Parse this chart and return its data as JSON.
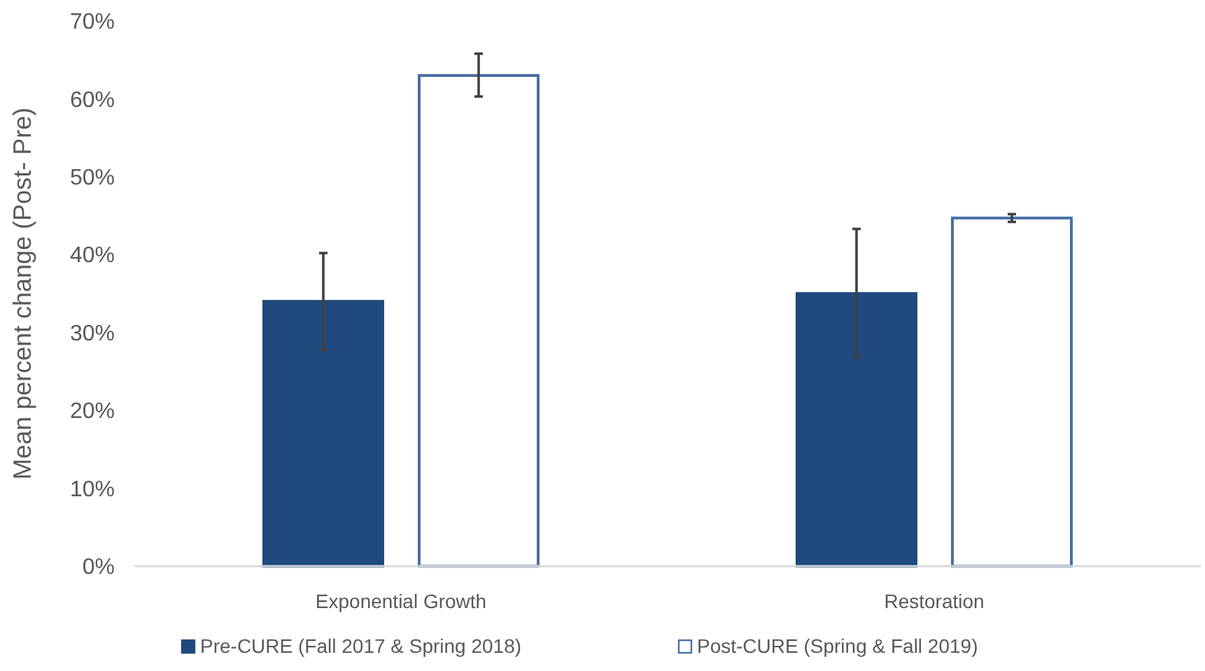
{
  "chart_data": {
    "type": "bar",
    "ylabel": "Mean percent change (Post- Pre)",
    "categories": [
      "Exponential Growth",
      "Restoration"
    ],
    "series": [
      {
        "name": "Pre-CURE (Fall 2017 & Spring 2018)",
        "color": "#1f497d",
        "values": [
          34,
          35
        ],
        "errors": [
          [
            27.8,
            40.2
          ],
          [
            26.8,
            43.3
          ]
        ]
      },
      {
        "name": "Post-CURE (Spring & Fall 2019)",
        "color": "#4a6fa5",
        "values": [
          63,
          44.7
        ],
        "errors": [
          [
            60.3,
            65.8
          ],
          [
            44.2,
            45.2
          ]
        ]
      }
    ],
    "ylim": [
      0,
      70
    ],
    "yticks": [
      {
        "value": 0,
        "label": "0%"
      },
      {
        "value": 10,
        "label": "10%"
      },
      {
        "value": 20,
        "label": "20%"
      },
      {
        "value": 30,
        "label": "30%"
      },
      {
        "value": 40,
        "label": "40%"
      },
      {
        "value": 50,
        "label": "50%"
      },
      {
        "value": 60,
        "label": "60%"
      },
      {
        "value": 70,
        "label": "70%"
      }
    ],
    "grid": false,
    "legend": "bottom"
  }
}
